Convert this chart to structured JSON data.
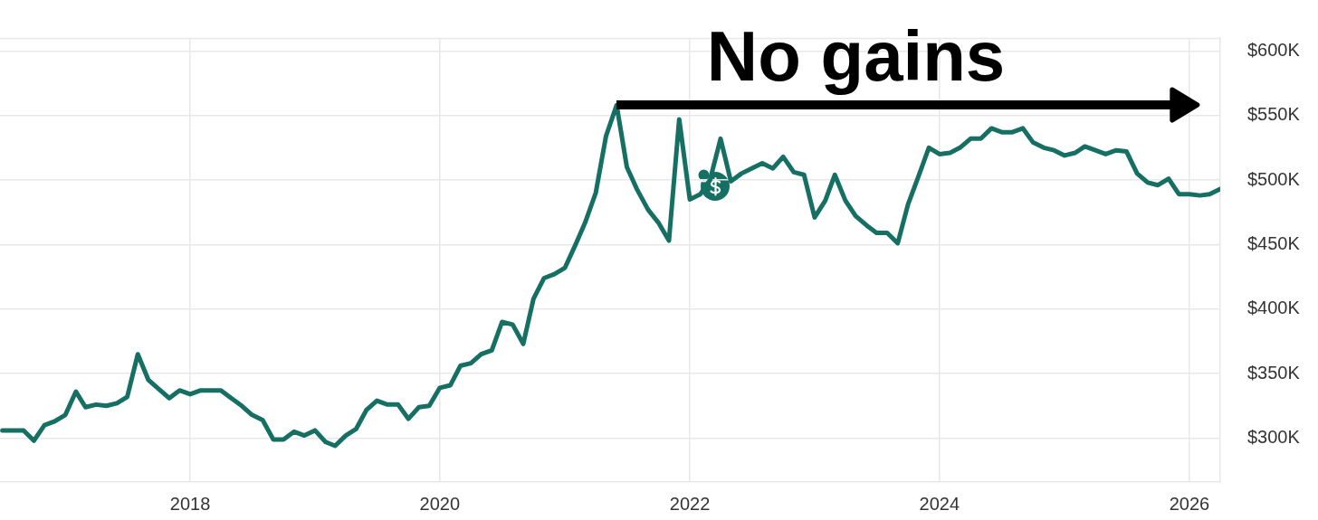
{
  "chart_data": {
    "type": "line",
    "x": [
      "2016-07",
      "2016-08",
      "2016-09",
      "2016-10",
      "2016-11",
      "2016-12",
      "2017-01",
      "2017-02",
      "2017-03",
      "2017-04",
      "2017-05",
      "2017-06",
      "2017-07",
      "2017-08",
      "2017-09",
      "2017-10",
      "2017-11",
      "2017-12",
      "2018-01",
      "2018-02",
      "2018-03",
      "2018-04",
      "2018-05",
      "2018-06",
      "2018-07",
      "2018-08",
      "2018-09",
      "2018-10",
      "2018-11",
      "2018-12",
      "2019-01",
      "2019-02",
      "2019-03",
      "2019-04",
      "2019-05",
      "2019-06",
      "2019-07",
      "2019-08",
      "2019-09",
      "2019-10",
      "2019-11",
      "2019-12",
      "2020-01",
      "2020-02",
      "2020-03",
      "2020-04",
      "2020-05",
      "2020-06",
      "2020-07",
      "2020-08",
      "2020-09",
      "2020-10",
      "2020-11",
      "2020-12",
      "2021-01",
      "2021-02",
      "2021-03",
      "2021-04",
      "2021-05",
      "2021-06",
      "2021-07",
      "2021-08",
      "2021-09",
      "2021-10",
      "2021-11",
      "2021-12",
      "2022-01",
      "2022-02",
      "2022-03",
      "2022-04",
      "2022-05",
      "2022-06",
      "2022-07",
      "2022-08",
      "2022-09",
      "2022-10",
      "2022-11",
      "2022-12",
      "2023-01",
      "2023-02",
      "2023-03",
      "2023-04",
      "2023-05",
      "2023-06",
      "2023-07",
      "2023-08",
      "2023-09",
      "2023-10",
      "2023-11",
      "2023-12",
      "2024-01",
      "2024-02",
      "2024-03",
      "2024-04",
      "2024-05",
      "2024-06",
      "2024-07",
      "2024-08",
      "2024-09",
      "2024-10",
      "2024-11",
      "2024-12",
      "2025-01",
      "2025-02",
      "2025-03",
      "2025-04",
      "2025-05",
      "2025-06",
      "2025-07",
      "2025-08",
      "2025-09",
      "2025-10",
      "2025-11",
      "2025-12",
      "2026-01",
      "2026-02",
      "2026-03",
      "2026-04"
    ],
    "values": [
      306000,
      306000,
      306000,
      298000,
      310000,
      313000,
      318000,
      336000,
      324000,
      326000,
      325000,
      327000,
      332000,
      365000,
      345000,
      338000,
      331000,
      337000,
      334000,
      337000,
      337000,
      337000,
      331000,
      325000,
      318000,
      314000,
      299000,
      299000,
      305000,
      302000,
      306000,
      297000,
      294000,
      302000,
      307000,
      322000,
      329000,
      326000,
      326000,
      315000,
      324000,
      325000,
      339000,
      341000,
      356000,
      358000,
      365000,
      368000,
      390000,
      388000,
      373000,
      408000,
      424000,
      427000,
      432000,
      450000,
      467000,
      490000,
      534000,
      558000,
      510000,
      492000,
      477000,
      467000,
      453000,
      547000,
      485000,
      489000,
      500000,
      532000,
      499000,
      505000,
      509000,
      513000,
      509000,
      518000,
      506000,
      504000,
      471000,
      484000,
      504000,
      484000,
      472000,
      465000,
      459000,
      459000,
      451000,
      481000,
      503000,
      525000,
      520000,
      521000,
      525000,
      532000,
      532000,
      540000,
      537000,
      537000,
      540000,
      529000,
      525000,
      523000,
      519000,
      521000,
      526000,
      523000,
      520000,
      523000,
      522000,
      505000,
      498000,
      496000,
      501000,
      489000,
      489000,
      488000,
      489000,
      493000
    ],
    "color": "#157063",
    "marker": "none",
    "line_style": "solid",
    "xlim": [
      "2016-06-24",
      "2026-04"
    ],
    "xticks": [
      "2018",
      "2020",
      "2022",
      "2024",
      "2026"
    ],
    "ylim": [
      266000,
      610000
    ],
    "yticks": [
      {
        "value": 300000,
        "label": "$300K"
      },
      {
        "value": 350000,
        "label": "$350K"
      },
      {
        "value": 400000,
        "label": "$400K"
      },
      {
        "value": 450000,
        "label": "$450K"
      },
      {
        "value": 500000,
        "label": "$500K"
      },
      {
        "value": 550000,
        "label": "$550K"
      },
      {
        "value": 600000,
        "label": "$600K"
      }
    ],
    "grid": true,
    "annotations": [
      {
        "text": "No gains",
        "x": "2021-06",
        "y": 558000
      }
    ]
  }
}
